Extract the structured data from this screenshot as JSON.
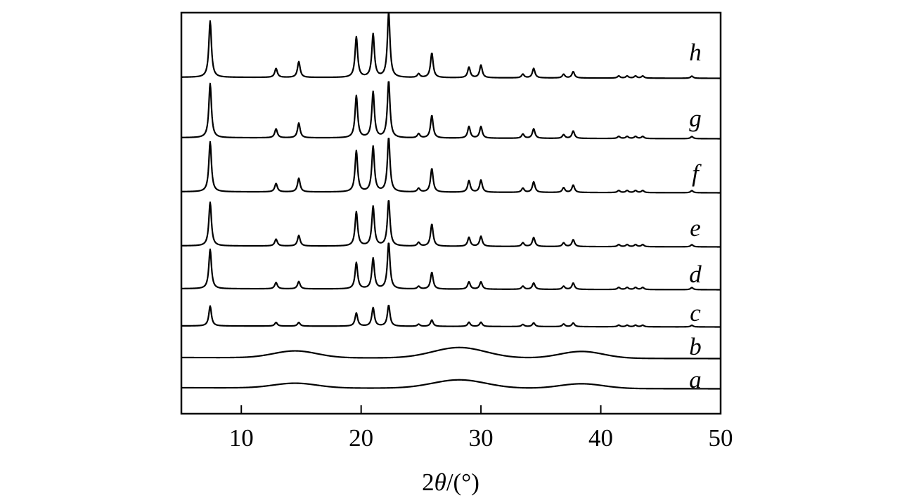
{
  "chart_data": {
    "type": "line",
    "xlabel_prefix": "2",
    "xlabel_symbol": "θ",
    "xlabel_suffix": "/(°)",
    "ylabel": "",
    "xlim": [
      5,
      50
    ],
    "xticks": [
      10,
      20,
      30,
      40,
      50
    ],
    "y_axis_ticks_shown": false,
    "grid": false,
    "series_labels_position": "right",
    "line_color": "#000000",
    "peak_positions": [
      7.4,
      12.9,
      14.8,
      19.6,
      21.0,
      22.3,
      24.8,
      25.9,
      29.0,
      30.0,
      33.5,
      34.4,
      36.9,
      37.7,
      41.5,
      42.2,
      42.9,
      43.5,
      47.6
    ],
    "amorphous_humps": [
      14.5,
      28.2,
      38.4
    ],
    "series": [
      {
        "name": "a",
        "kind": "amorphous",
        "peak_intensity": [],
        "hump_intensity": [
          0.09,
          0.16,
          0.09
        ]
      },
      {
        "name": "b",
        "kind": "amorphous",
        "peak_intensity": [],
        "hump_intensity": [
          0.13,
          0.2,
          0.13
        ]
      },
      {
        "name": "c",
        "kind": "crystalline",
        "peak_intensity": [
          0.38,
          0.07,
          0.07,
          0.25,
          0.35,
          0.4,
          0.04,
          0.12,
          0.08,
          0.08,
          0.04,
          0.07,
          0.05,
          0.07,
          0.03,
          0.03,
          0.03,
          0.03,
          0.03
        ],
        "hump_intensity": []
      },
      {
        "name": "d",
        "kind": "crystalline",
        "peak_intensity": [
          0.75,
          0.12,
          0.14,
          0.5,
          0.58,
          0.88,
          0.05,
          0.32,
          0.14,
          0.14,
          0.06,
          0.12,
          0.06,
          0.12,
          0.04,
          0.04,
          0.04,
          0.04,
          0.04
        ],
        "hump_intensity": []
      },
      {
        "name": "e",
        "kind": "crystalline",
        "peak_intensity": [
          0.83,
          0.13,
          0.2,
          0.65,
          0.75,
          0.87,
          0.07,
          0.42,
          0.17,
          0.19,
          0.07,
          0.17,
          0.07,
          0.13,
          0.04,
          0.04,
          0.04,
          0.04,
          0.04
        ],
        "hump_intensity": []
      },
      {
        "name": "f",
        "kind": "crystalline",
        "peak_intensity": [
          0.95,
          0.16,
          0.26,
          0.78,
          0.86,
          1.03,
          0.07,
          0.45,
          0.22,
          0.23,
          0.08,
          0.2,
          0.09,
          0.14,
          0.04,
          0.04,
          0.04,
          0.04,
          0.04
        ],
        "hump_intensity": []
      },
      {
        "name": "g",
        "kind": "crystalline",
        "peak_intensity": [
          1.03,
          0.17,
          0.28,
          0.8,
          0.87,
          1.08,
          0.08,
          0.43,
          0.22,
          0.22,
          0.08,
          0.18,
          0.07,
          0.14,
          0.04,
          0.04,
          0.04,
          0.04,
          0.04
        ],
        "hump_intensity": []
      },
      {
        "name": "h",
        "kind": "crystalline",
        "peak_intensity": [
          1.07,
          0.17,
          0.3,
          0.77,
          0.82,
          1.23,
          0.07,
          0.47,
          0.2,
          0.24,
          0.07,
          0.18,
          0.07,
          0.12,
          0.04,
          0.04,
          0.04,
          0.04,
          0.04
        ],
        "hump_intensity": []
      }
    ]
  }
}
